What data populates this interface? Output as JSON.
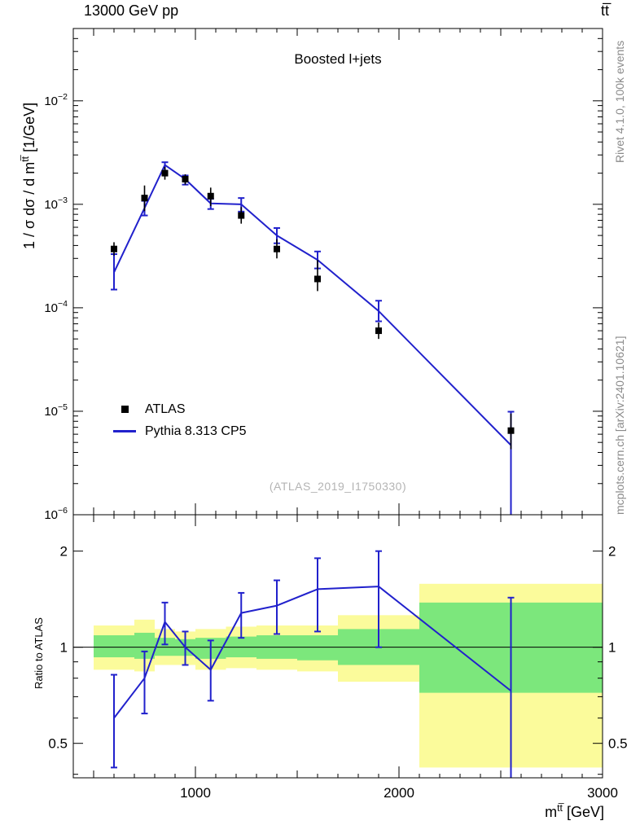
{
  "header": {
    "beam": "13000 GeV pp",
    "process": "tt̅"
  },
  "panel": {
    "title": "Boosted l+jets",
    "watermark": "(ATLAS_2019_I1750330)"
  },
  "side_texts": {
    "rivet": "Rivet 4.1.0, 100k events",
    "mcplots": "mcplots.cern.ch [arXiv:2401.10621]"
  },
  "labels": {
    "y_main": {
      "pre": "1 / σ dσ / d m",
      "sup": "tt̅",
      "post": " [1/GeV]"
    },
    "ratio": "Ratio to ATLAS",
    "x": {
      "pre": "m",
      "sup": "tt̅",
      "post": " [GeV]"
    }
  },
  "legend": {
    "items": [
      {
        "label": "ATLAS",
        "marker": "square",
        "color": "#000000"
      },
      {
        "label": "Pythia 8.313 CP5",
        "marker": "line",
        "color": "#2121cc"
      }
    ]
  },
  "colors": {
    "mc_line": "#2121cc",
    "data": "#000000",
    "band_outer": "#fbfb9b",
    "band_inner": "#7ce77c",
    "ref_line": "#000000",
    "frame": "#000000"
  },
  "chart_data": [
    {
      "type": "line",
      "title": "Boosted l+jets",
      "x_axis": {
        "scale": "linear",
        "min": 400,
        "max": 3000,
        "major_ticks": [
          1000,
          2000,
          3000
        ],
        "minor_step": 100,
        "label": "m^tt [GeV]"
      },
      "y_axis": {
        "scale": "log",
        "min": 1e-06,
        "max": 0.05,
        "decades": [
          -2,
          -3,
          -4,
          -5,
          -6
        ],
        "label": "1/sigma dsigma/dm^tt [1/GeV]"
      },
      "x": [
        600,
        750,
        850,
        950,
        1075,
        1225,
        1400,
        1600,
        1900,
        2550
      ],
      "series": [
        {
          "name": "ATLAS",
          "style": "points",
          "color": "#000000",
          "y": [
            0.00037,
            0.00115,
            0.002,
            0.00175,
            0.0012,
            0.00078,
            0.00037,
            0.00019,
            6e-05,
            6.5e-06
          ],
          "y_lo": [
            0.00032,
            0.00086,
            0.00173,
            0.00155,
            0.00096,
            0.00065,
            0.0003,
            0.000145,
            5e-05,
            4.3e-06
          ],
          "y_hi": [
            0.00043,
            0.00152,
            0.0023,
            0.00195,
            0.00145,
            0.00094,
            0.00046,
            0.00029,
            7.2e-05,
            9.5e-06
          ]
        },
        {
          "name": "Pythia 8.313 CP5",
          "style": "line",
          "color": "#2121cc",
          "y": [
            0.00022,
            0.00092,
            0.0024,
            0.00175,
            0.00102,
            0.001,
            0.0005,
            0.00029,
            9.3e-05,
            4.7e-06
          ],
          "y_lo": [
            0.00015,
            0.00078,
            0.0021,
            0.00155,
            0.0009,
            0.00085,
            0.00042,
            0.00024,
            7.4e-05,
            9e-07
          ],
          "y_hi": [
            0.00033,
            0.00108,
            0.00255,
            0.0019,
            0.00113,
            0.00115,
            0.00059,
            0.00035,
            0.000117,
            9.9e-06
          ]
        }
      ]
    },
    {
      "type": "ratio",
      "y_axis": {
        "scale": "log",
        "min": 0.39,
        "max": 2.6,
        "major_ticks": [
          0.5,
          1,
          2
        ],
        "minor_ticks": [
          0.4,
          0.6,
          0.7,
          0.8,
          0.9
        ]
      },
      "reference_y": 1,
      "band_bin_edges": [
        500,
        700,
        800,
        900,
        1000,
        1150,
        1300,
        1500,
        1700,
        2100,
        3000
      ],
      "bands": {
        "outer": [
          [
            0.85,
            1.17
          ],
          [
            0.84,
            1.22
          ],
          [
            0.88,
            1.14
          ],
          [
            0.88,
            1.12
          ],
          [
            0.85,
            1.14
          ],
          [
            0.86,
            1.16
          ],
          [
            0.85,
            1.17
          ],
          [
            0.84,
            1.17
          ],
          [
            0.78,
            1.26
          ],
          [
            0.42,
            1.58
          ]
        ],
        "inner": [
          [
            0.93,
            1.09
          ],
          [
            0.92,
            1.11
          ],
          [
            0.94,
            1.07
          ],
          [
            0.94,
            1.06
          ],
          [
            0.92,
            1.07
          ],
          [
            0.93,
            1.08
          ],
          [
            0.92,
            1.09
          ],
          [
            0.91,
            1.09
          ],
          [
            0.88,
            1.14
          ],
          [
            0.72,
            1.38
          ]
        ]
      },
      "x": [
        600,
        750,
        850,
        950,
        1075,
        1225,
        1400,
        1600,
        1900,
        2550
      ],
      "ratio": {
        "y": [
          0.6,
          0.8,
          1.2,
          1.0,
          0.85,
          1.28,
          1.35,
          1.52,
          1.55,
          0.73
        ],
        "y_lo": [
          0.42,
          0.62,
          1.02,
          0.88,
          0.68,
          1.07,
          1.1,
          1.12,
          1.0,
          0.33
        ],
        "y_hi": [
          0.82,
          0.97,
          1.38,
          1.12,
          1.05,
          1.48,
          1.62,
          1.9,
          2.0,
          1.43
        ]
      }
    }
  ]
}
